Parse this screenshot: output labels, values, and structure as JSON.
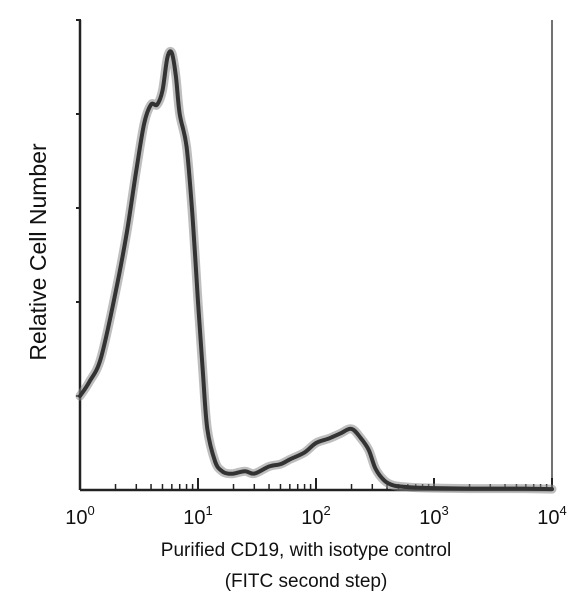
{
  "chart_data": {
    "type": "line",
    "title": "",
    "xlabel": "Purified CD19, with isotype control",
    "xlabel_sub": "(FITC second step)",
    "ylabel": "Relative Cell Number",
    "x_scale": "log",
    "xlim": [
      1,
      10000
    ],
    "ylim": [
      0,
      100
    ],
    "grid": false,
    "legend": "none",
    "x_ticks": [
      {
        "base": "10",
        "exp": "0",
        "value": 1
      },
      {
        "base": "10",
        "exp": "1",
        "value": 10
      },
      {
        "base": "10",
        "exp": "2",
        "value": 100
      },
      {
        "base": "10",
        "exp": "3",
        "value": 1000
      },
      {
        "base": "10",
        "exp": "4",
        "value": 10000
      }
    ],
    "y_ticks": [
      0,
      20,
      40,
      60,
      80,
      100
    ],
    "series": [
      {
        "color": "#333333",
        "x": [
          1,
          1.2,
          1.5,
          2,
          2.5,
          3,
          3.5,
          4,
          4.5,
          5,
          5.5,
          6,
          6.5,
          7,
          8,
          9,
          10,
          11,
          12,
          14,
          16,
          18,
          20,
          25,
          30,
          40,
          50,
          60,
          80,
          100,
          130,
          160,
          200,
          240,
          280,
          320,
          380,
          450,
          550,
          700,
          1000,
          2000,
          5000,
          10000
        ],
        "y": [
          20,
          23,
          28,
          42,
          55,
          68,
          78,
          82,
          82,
          85,
          92,
          93,
          88,
          80,
          73,
          58,
          40,
          25,
          13,
          6,
          4,
          3.5,
          3.5,
          4,
          3.5,
          5,
          5.5,
          6.5,
          8,
          10,
          11,
          12,
          13,
          11,
          8.5,
          4.5,
          2,
          1,
          0.7,
          0.5,
          0.4,
          0.3,
          0.3,
          0.2
        ]
      }
    ]
  }
}
